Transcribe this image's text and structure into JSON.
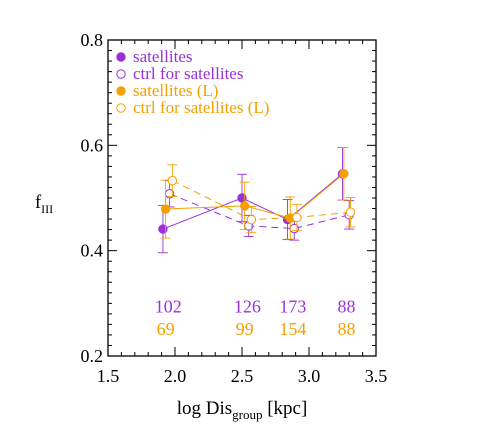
{
  "chart_data": {
    "type": "line",
    "xlabel_main": "log Dis",
    "xlabel_sub": "group",
    "xlabel_unit": " [kpc]",
    "ylabel_main": "f",
    "ylabel_sub": "III",
    "xlim": [
      1.5,
      3.5
    ],
    "ylim": [
      0.2,
      0.8
    ],
    "xticks": [
      1.5,
      2.0,
      2.5,
      3.0,
      3.5
    ],
    "xtick_labels": [
      "1.5",
      "2.0",
      "2.5",
      "3.0",
      "3.5"
    ],
    "yticks": [
      0.2,
      0.4,
      0.6,
      0.8
    ],
    "ytick_labels": [
      "0.2",
      "0.4",
      "0.6",
      "0.8"
    ],
    "grid": false,
    "legend_position": "top-left",
    "series": [
      {
        "name": "satellites",
        "color": "#9b30d9",
        "marker": "filled-circle",
        "linestyle": "solid",
        "x": [
          1.91,
          2.5,
          2.84,
          3.25
        ],
        "y": [
          0.441,
          0.5,
          0.459,
          0.546
        ],
        "yerr": [
          0.045,
          0.045,
          0.038,
          0.05
        ]
      },
      {
        "name": "ctrl for satellites",
        "color": "#9b30d9",
        "marker": "open-circle",
        "linestyle": "dashed",
        "x": [
          1.96,
          2.55,
          2.89,
          3.3
        ],
        "y": [
          0.508,
          0.447,
          0.442,
          0.468
        ],
        "yerr": [
          0.025,
          0.02,
          0.022,
          0.027
        ]
      },
      {
        "name": "satellites (L)",
        "color": "#f5a000",
        "marker": "filled-circle",
        "linestyle": "solid",
        "x": [
          1.93,
          2.52,
          2.86,
          3.26
        ],
        "y": [
          0.479,
          0.485,
          0.462,
          0.546
        ],
        "yerr": [
          0.055,
          0.045,
          0.04,
          0.05
        ]
      },
      {
        "name": "ctrl for satellites (L)",
        "color": "#f5a000",
        "marker": "open-circle",
        "linestyle": "dashed",
        "x": [
          1.98,
          2.57,
          2.91,
          3.31
        ],
        "y": [
          0.533,
          0.459,
          0.463,
          0.473
        ],
        "yerr": [
          0.03,
          0.025,
          0.025,
          0.028
        ]
      }
    ],
    "annotations": [
      {
        "color": "#9b30d9",
        "labels": [
          "102",
          "126",
          "173",
          "88"
        ],
        "x": [
          1.95,
          2.54,
          2.88,
          3.28
        ],
        "y": 0.294
      },
      {
        "color": "#f5a000",
        "labels": [
          "69",
          "99",
          "154",
          "88"
        ],
        "x": [
          1.93,
          2.52,
          2.88,
          3.28
        ],
        "y": 0.251
      }
    ]
  }
}
